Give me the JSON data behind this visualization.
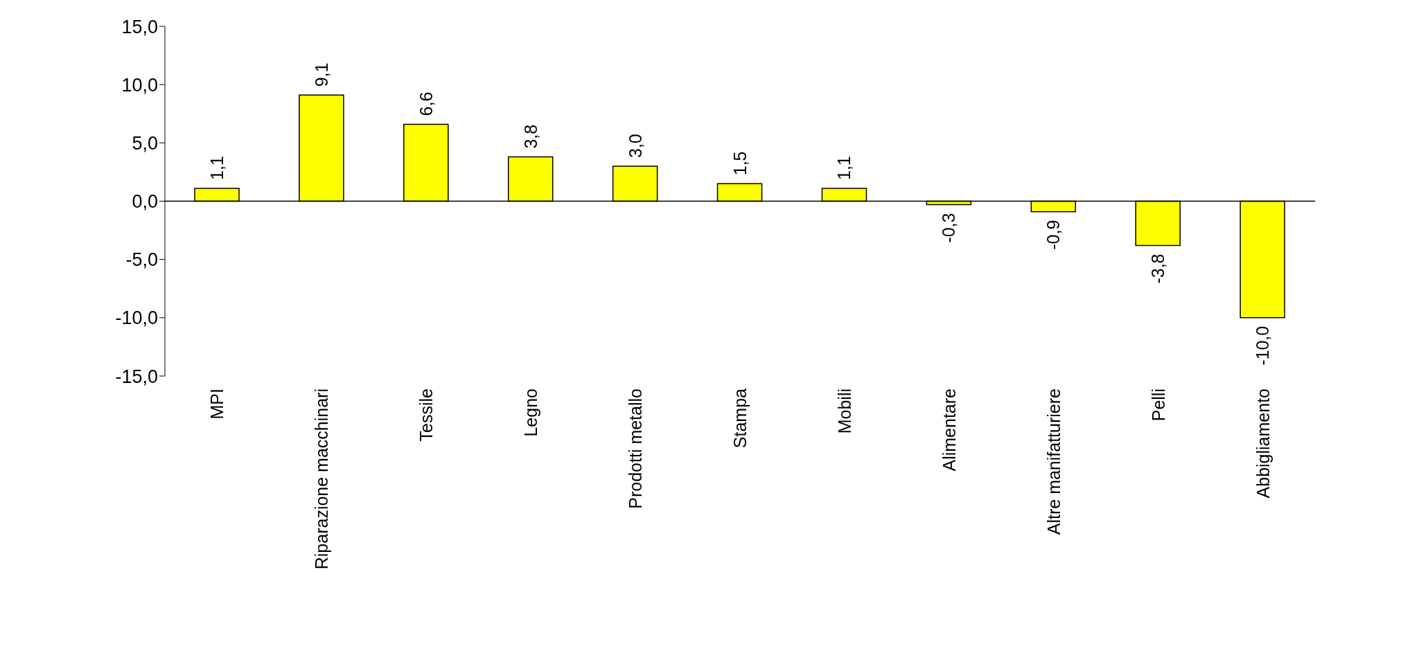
{
  "chart_data": {
    "type": "bar",
    "categories": [
      "MPI",
      "Riparazione macchinari",
      "Tessile",
      "Legno",
      "Prodotti metallo",
      "Stampa",
      "Mobili",
      "Alimentare",
      "Altre manifatturiere",
      "Pelli",
      "Abbigliamento"
    ],
    "values": [
      1.1,
      9.1,
      6.6,
      3.8,
      3.0,
      1.5,
      1.1,
      -0.3,
      -0.9,
      -3.8,
      -10.0
    ],
    "value_labels": [
      "1,1",
      "9,1",
      "6,6",
      "3,8",
      "3,0",
      "1,5",
      "1,1",
      "-0,3",
      "-0,9",
      "-3,8",
      "-10,0"
    ],
    "color": "#ffff00",
    "ylim": [
      -15,
      15
    ],
    "yticks": [
      {
        "value": -15,
        "label": "-15,0"
      },
      {
        "value": -10,
        "label": "-10,0"
      },
      {
        "value": -5,
        "label": "-5,0"
      },
      {
        "value": 0,
        "label": "0,0"
      },
      {
        "value": 5,
        "label": "5,0"
      },
      {
        "value": 10,
        "label": "10,0"
      },
      {
        "value": 15,
        "label": "15,0"
      }
    ],
    "legend": false
  }
}
